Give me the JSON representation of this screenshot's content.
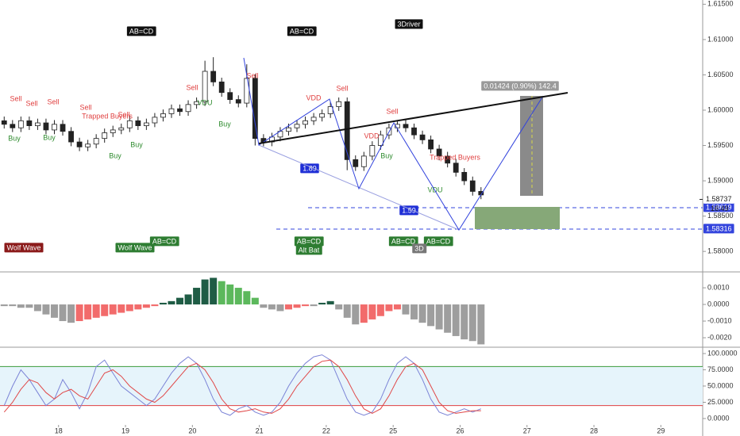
{
  "chart_data": [
    {
      "type": "candlestick",
      "xlim": [
        0,
        84
      ],
      "ylim": [
        1.5771,
        1.6156
      ],
      "yticks": [
        {
          "value": 1.58,
          "label": "1.58000"
        },
        {
          "value": 1.585,
          "label": "1.58500"
        },
        {
          "value": 1.59,
          "label": "1.59000"
        },
        {
          "value": 1.595,
          "label": "1.59500"
        },
        {
          "value": 1.6,
          "label": "1.60000"
        },
        {
          "value": 1.605,
          "label": "1.60500"
        },
        {
          "value": 1.61,
          "label": "1.61000"
        },
        {
          "value": 1.615,
          "label": "1.61500"
        }
      ],
      "up_color": "#ffffff",
      "down_color": "#222222",
      "open": [
        1.5985,
        1.598,
        1.5975,
        1.5985,
        1.5978,
        1.5982,
        1.5972,
        1.598,
        1.597,
        1.5955,
        1.5948,
        1.5952,
        1.596,
        1.5968,
        1.5972,
        1.5975,
        1.5985,
        1.5978,
        1.5982,
        1.599,
        1.5995,
        1.6002,
        1.5998,
        1.6008,
        1.6012,
        1.6055,
        1.604,
        1.6025,
        1.6015,
        1.601,
        1.6045,
        1.596,
        1.5955,
        1.5962,
        1.597,
        1.5975,
        1.598,
        1.5985,
        1.599,
        1.5995,
        1.6005,
        1.6012,
        1.593,
        1.592,
        1.5935,
        1.595,
        1.5965,
        1.5975,
        1.598,
        1.5975,
        1.5965,
        1.5958,
        1.5945,
        1.5935,
        1.5925,
        1.5912,
        1.59,
        1.5885
      ],
      "high": [
        1.5991,
        1.5986,
        1.5991,
        1.5991,
        1.5988,
        1.5988,
        1.5986,
        1.5986,
        1.5976,
        1.5961,
        1.5958,
        1.5966,
        1.5974,
        1.5978,
        1.5981,
        1.5991,
        1.5991,
        1.5988,
        1.5996,
        1.6001,
        1.6008,
        1.6008,
        1.6014,
        1.6018,
        1.607,
        1.6075,
        1.6046,
        1.6031,
        1.6021,
        1.6065,
        1.6051,
        1.5966,
        1.5968,
        1.5976,
        1.5981,
        1.5986,
        1.5991,
        1.5996,
        1.6001,
        1.6011,
        1.6018,
        1.6018,
        1.5936,
        1.5941,
        1.5956,
        1.5971,
        1.5981,
        1.5986,
        1.5986,
        1.5981,
        1.5971,
        1.5964,
        1.5951,
        1.5941,
        1.5931,
        1.5918,
        1.5906,
        1.5891
      ],
      "low": [
        1.5974,
        1.5969,
        1.5969,
        1.5972,
        1.5972,
        1.5966,
        1.5966,
        1.5964,
        1.5949,
        1.5942,
        1.5942,
        1.5946,
        1.5954,
        1.5962,
        1.5966,
        1.5969,
        1.5972,
        1.5972,
        1.5976,
        1.5984,
        1.5989,
        1.5992,
        1.5992,
        1.6002,
        1.6006,
        1.6034,
        1.6019,
        1.6009,
        1.6004,
        1.6004,
        1.595,
        1.5949,
        1.5949,
        1.5956,
        1.5964,
        1.5969,
        1.5974,
        1.5979,
        1.5984,
        1.5989,
        1.5999,
        1.5915,
        1.5914,
        1.5914,
        1.5929,
        1.5944,
        1.5959,
        1.5969,
        1.5969,
        1.5959,
        1.5952,
        1.5939,
        1.5929,
        1.5919,
        1.5906,
        1.5894,
        1.5879,
        1.5874
      ],
      "close": [
        1.598,
        1.5975,
        1.5985,
        1.5978,
        1.5982,
        1.5972,
        1.598,
        1.597,
        1.5955,
        1.5948,
        1.5952,
        1.596,
        1.5968,
        1.5972,
        1.5975,
        1.5985,
        1.5978,
        1.5982,
        1.599,
        1.5995,
        1.6002,
        1.5998,
        1.6008,
        1.6012,
        1.6055,
        1.604,
        1.6025,
        1.6015,
        1.601,
        1.6045,
        1.596,
        1.5955,
        1.5962,
        1.597,
        1.5975,
        1.598,
        1.5985,
        1.599,
        1.5995,
        1.6005,
        1.6012,
        1.593,
        1.592,
        1.5935,
        1.595,
        1.5965,
        1.5975,
        1.598,
        1.5975,
        1.5965,
        1.5958,
        1.5945,
        1.5935,
        1.5925,
        1.5912,
        1.59,
        1.5885,
        1.588
      ],
      "last_price": 1.58737,
      "countdown": "16:49",
      "hlines": [
        1.58619,
        1.58316
      ],
      "hline_color": "#3344dd",
      "annotations": [
        "AB=CD",
        "AB=CD",
        "3Driver",
        "0.01424 (0.90%) 142.4",
        "1.89",
        "1.59",
        "Sell",
        "Sell",
        "Sell",
        "Sell",
        "Sell",
        "Sell",
        "Sell",
        "Sell",
        "Sell",
        "Buy",
        "Buy",
        "Buy",
        "Buy",
        "Buy",
        "Buy",
        "VDD",
        "VDD",
        "VDU",
        "VDU",
        "Trapped Buyers",
        "Trapped Buyers",
        "Wolf Wave",
        "AB=CD",
        "AB=CD",
        "Alt Bat",
        "AB=CD",
        "AB=CD",
        "3D",
        "Wolf Wave"
      ]
    },
    {
      "type": "bar",
      "xlim": [
        0,
        84
      ],
      "ylim": [
        -0.00257,
        0.00186
      ],
      "yticks": [
        {
          "value": 0.001,
          "label": "0.0010"
        },
        {
          "value": 0,
          "label": "0.0000"
        },
        {
          "value": -0.001,
          "label": "-0.0010"
        },
        {
          "value": -0.002,
          "label": "-0.0020"
        }
      ],
      "palette": {
        "pos_up": "#1f5c45",
        "pos_down": "#5cb85c",
        "neg_down": "#9e9e9e",
        "neg_up": "#f26b6b"
      },
      "values": [
        -0.0001,
        -0.0001,
        -0.0002,
        -0.0002,
        -0.0004,
        -0.0006,
        -0.0008,
        -0.001,
        -0.0011,
        -0.001,
        -0.0009,
        -0.0008,
        -0.0007,
        -0.0006,
        -0.0005,
        -0.0004,
        -0.0003,
        -0.0002,
        -0.0001,
        0.0001,
        0.0002,
        0.0004,
        0.0006,
        0.001,
        0.0015,
        0.0016,
        0.0014,
        0.0012,
        0.001,
        0.0008,
        0.0004,
        -0.0002,
        -0.0003,
        -0.0004,
        -0.0003,
        -0.0002,
        -0.0001,
        -0.0001,
        0.0001,
        0.0002,
        -0.0003,
        -0.0008,
        -0.0012,
        -0.0011,
        -0.0009,
        -0.0007,
        -0.0004,
        -0.0003,
        -0.0006,
        -0.0009,
        -0.0011,
        -0.0013,
        -0.0015,
        -0.0017,
        -0.0019,
        -0.0021,
        -0.0022,
        -0.0024
      ]
    },
    {
      "type": "line",
      "xlim": [
        0,
        84
      ],
      "ylim": [
        -9.8,
        107.3
      ],
      "xticks": [
        {
          "value": 7,
          "label": "18"
        },
        {
          "value": 15,
          "label": "19"
        },
        {
          "value": 23,
          "label": "20"
        },
        {
          "value": 31,
          "label": "21"
        },
        {
          "value": 39,
          "label": "22"
        },
        {
          "value": 47,
          "label": "25"
        },
        {
          "value": 55,
          "label": "26"
        },
        {
          "value": 63,
          "label": "27"
        },
        {
          "value": 71,
          "label": "28"
        },
        {
          "value": 79,
          "label": "29"
        }
      ],
      "yticks": [
        {
          "value": 100,
          "label": "100.0000"
        },
        {
          "value": 75,
          "label": "75.0000"
        },
        {
          "value": 50,
          "label": "50.0000"
        },
        {
          "value": 25,
          "label": "25.0000"
        },
        {
          "value": 0,
          "label": "0.0000"
        }
      ],
      "levels": [
        {
          "value": 80,
          "color": "#3a9a3a"
        },
        {
          "value": 20,
          "color": "#e04040"
        }
      ],
      "band_color": "#e6f4fb",
      "series": [
        {
          "color": "#7b83d6",
          "values": [
            20,
            50,
            75,
            60,
            40,
            20,
            30,
            60,
            40,
            15,
            40,
            80,
            90,
            70,
            50,
            40,
            30,
            20,
            30,
            50,
            70,
            85,
            95,
            85,
            60,
            30,
            10,
            5,
            15,
            20,
            10,
            5,
            10,
            25,
            50,
            70,
            85,
            95,
            98,
            90,
            60,
            30,
            10,
            5,
            10,
            30,
            60,
            85,
            95,
            85,
            60,
            30,
            10,
            5,
            10,
            15,
            10,
            15
          ]
        },
        {
          "color": "#e04848",
          "values": [
            10,
            25,
            45,
            60,
            55,
            40,
            30,
            40,
            45,
            35,
            30,
            50,
            70,
            75,
            65,
            50,
            40,
            30,
            25,
            35,
            50,
            65,
            80,
            85,
            75,
            55,
            30,
            15,
            10,
            12,
            15,
            10,
            8,
            15,
            30,
            50,
            65,
            80,
            88,
            90,
            80,
            60,
            35,
            15,
            8,
            15,
            35,
            60,
            80,
            85,
            75,
            50,
            25,
            12,
            8,
            10,
            12,
            12
          ]
        }
      ]
    }
  ]
}
